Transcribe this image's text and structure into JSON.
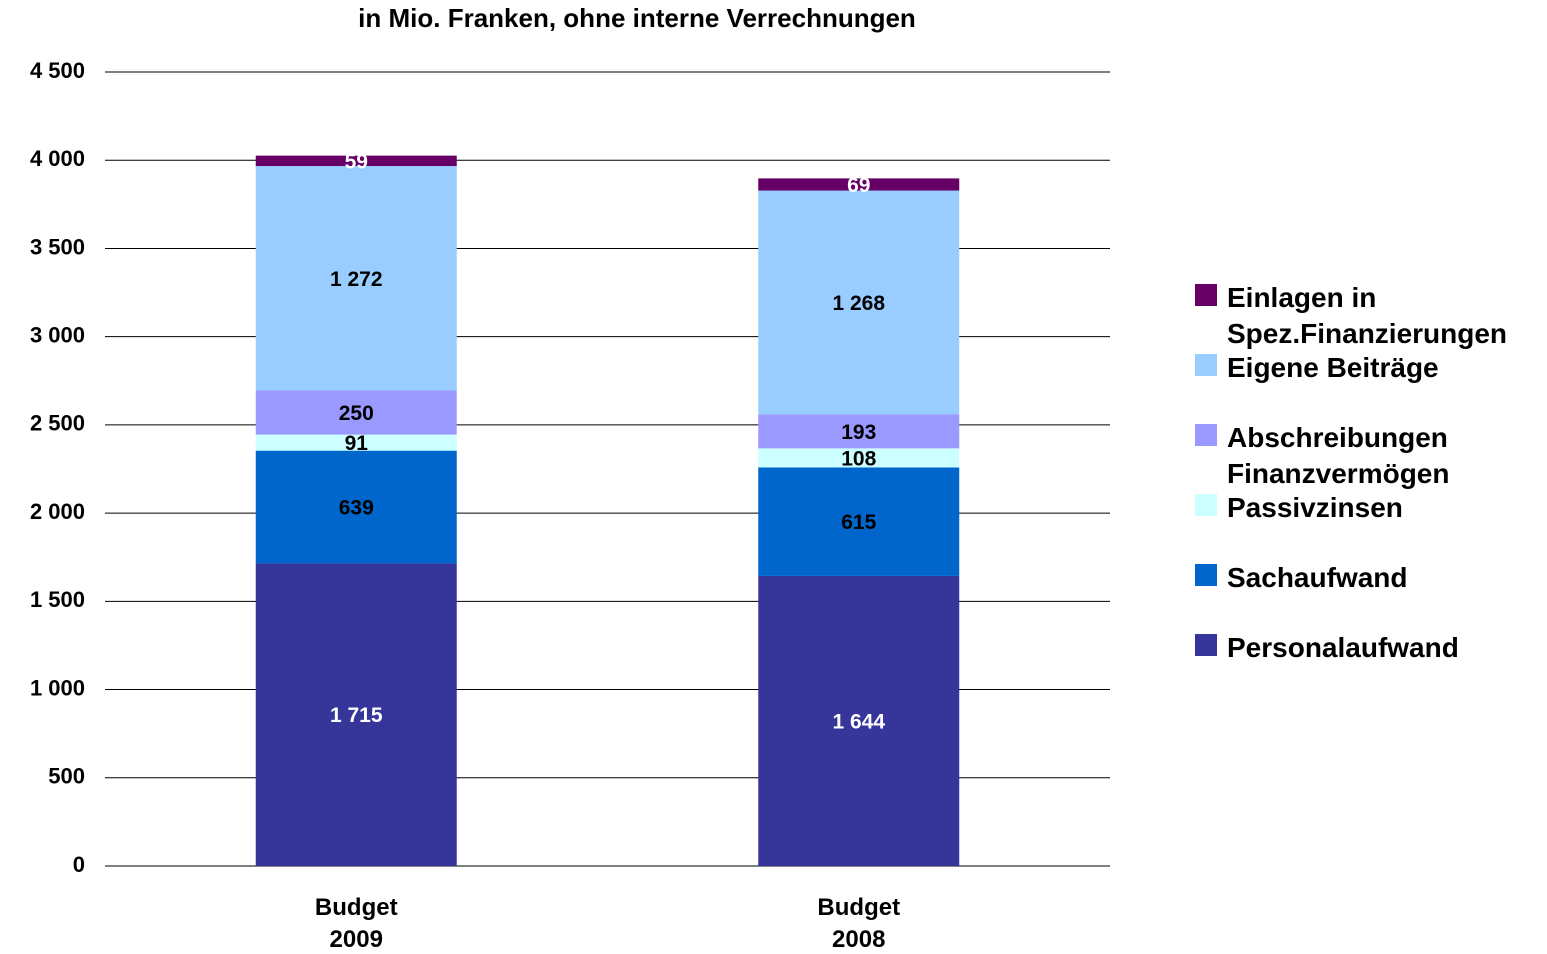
{
  "chart_data": {
    "type": "stacked_bar",
    "title": "in Mio. Franken, ohne interne Verrechnungen",
    "categories": [
      "Budget 2009",
      "Budget 2008"
    ],
    "series": [
      {
        "name": "Personalaufwand",
        "color": "#35359a",
        "label_color": "#ffffff",
        "values": [
          1715,
          1644
        ],
        "value_labels": [
          "1 715",
          "1 644"
        ]
      },
      {
        "name": "Sachaufwand",
        "color": "#0066cc",
        "label_color": "#000000",
        "values": [
          639,
          615
        ]
      },
      {
        "name": "Passivzinsen",
        "color": "#ccffff",
        "label_color": "#000000",
        "values": [
          91,
          108
        ]
      },
      {
        "name": "Abschreibungen Finanzvermögen",
        "color": "#9999ff",
        "label_color": "#000000",
        "values": [
          250,
          193
        ]
      },
      {
        "name": "Eigene Beiträge",
        "color": "#99ccff",
        "label_color": "#000000",
        "values": [
          1272,
          1268
        ],
        "value_labels": [
          "1 272",
          "1 268"
        ]
      },
      {
        "name": "Einlagen in Spez.Finanzierungen",
        "color": "#660066",
        "label_color": "#ffffff",
        "values": [
          59,
          69
        ]
      }
    ],
    "ylim": [
      0,
      4500
    ],
    "yticks": [
      0,
      500,
      {
        "value": 1000,
        "label": "1 000"
      },
      {
        "value": 1500,
        "label": "1 500"
      },
      {
        "value": 2000,
        "label": "2 000"
      },
      {
        "value": 2500,
        "label": "2 500"
      },
      {
        "value": 3000,
        "label": "3 000"
      },
      {
        "value": 3500,
        "label": "3 500"
      },
      {
        "value": 4000,
        "label": "4 000"
      },
      {
        "value": 4500,
        "label": "4 500"
      }
    ],
    "grid": true,
    "legend": "right"
  }
}
